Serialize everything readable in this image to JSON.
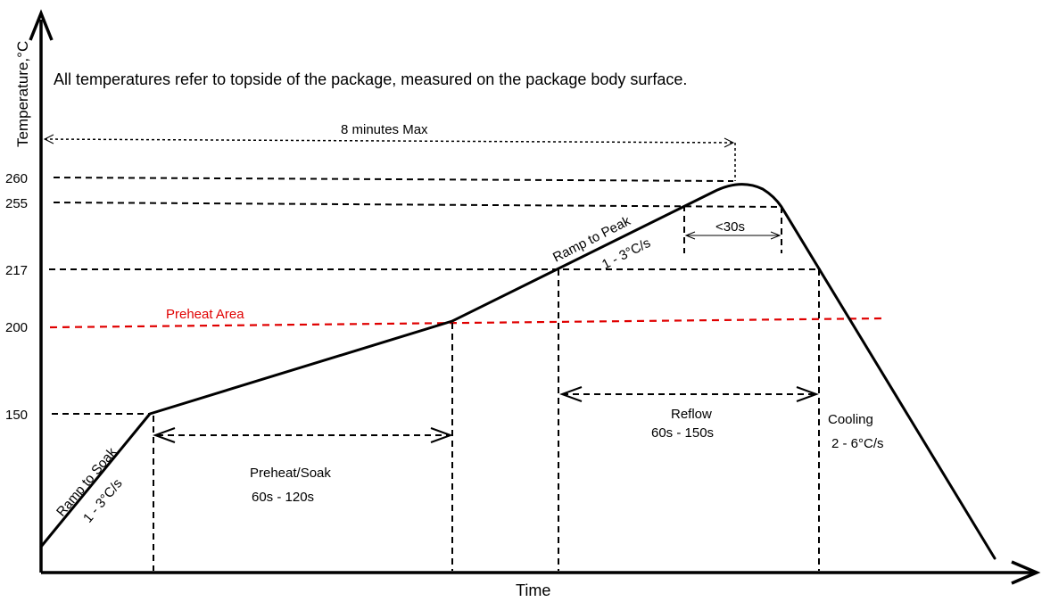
{
  "axes": {
    "y_label": "Temperature,°C",
    "x_label": "Time",
    "y_ticks": [
      "260",
      "255",
      "217",
      "200",
      "150"
    ]
  },
  "note": "All temperatures refer to topside of the package, measured on the package body surface.",
  "annotations": {
    "max_time": "8 minutes Max",
    "ramp_to_soak": "Ramp to Soak",
    "ramp_to_soak_rate": "1 - 3°C/s",
    "preheat_area": "Preheat Area",
    "preheat_soak": "Preheat/Soak",
    "preheat_soak_time": "60s - 120s",
    "ramp_to_peak": "Ramp to Peak",
    "ramp_to_peak_rate": "1 - 3°C/s",
    "peak_time": "<30s",
    "reflow": "Reflow",
    "reflow_time": "60s - 150s",
    "cooling": "Cooling",
    "cooling_rate": "2 - 6°C/s"
  },
  "colors": {
    "preheat_area": "#e00000",
    "lines": "#000000"
  }
}
